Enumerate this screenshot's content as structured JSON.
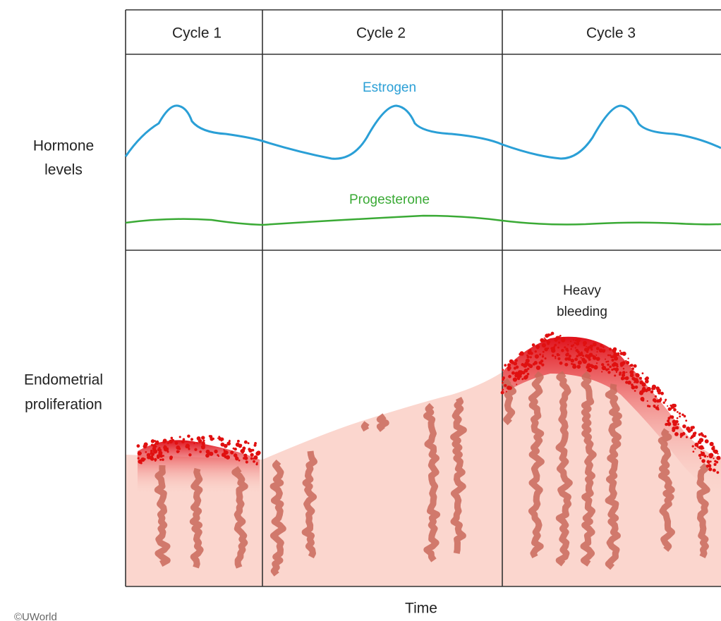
{
  "header": {
    "cycles": [
      "Cycle 1",
      "Cycle 2",
      "Cycle 3"
    ]
  },
  "rows": [
    {
      "lines": [
        "Hormone",
        "levels"
      ]
    },
    {
      "lines": [
        "Endometrial",
        "proliferation"
      ]
    }
  ],
  "curves": {
    "estrogen": "Estrogen",
    "progesterone": "Progesterone"
  },
  "annotation": {
    "lines": [
      "Heavy",
      "bleeding"
    ]
  },
  "x_axis_label": "Time",
  "credit": "©UWorld"
}
